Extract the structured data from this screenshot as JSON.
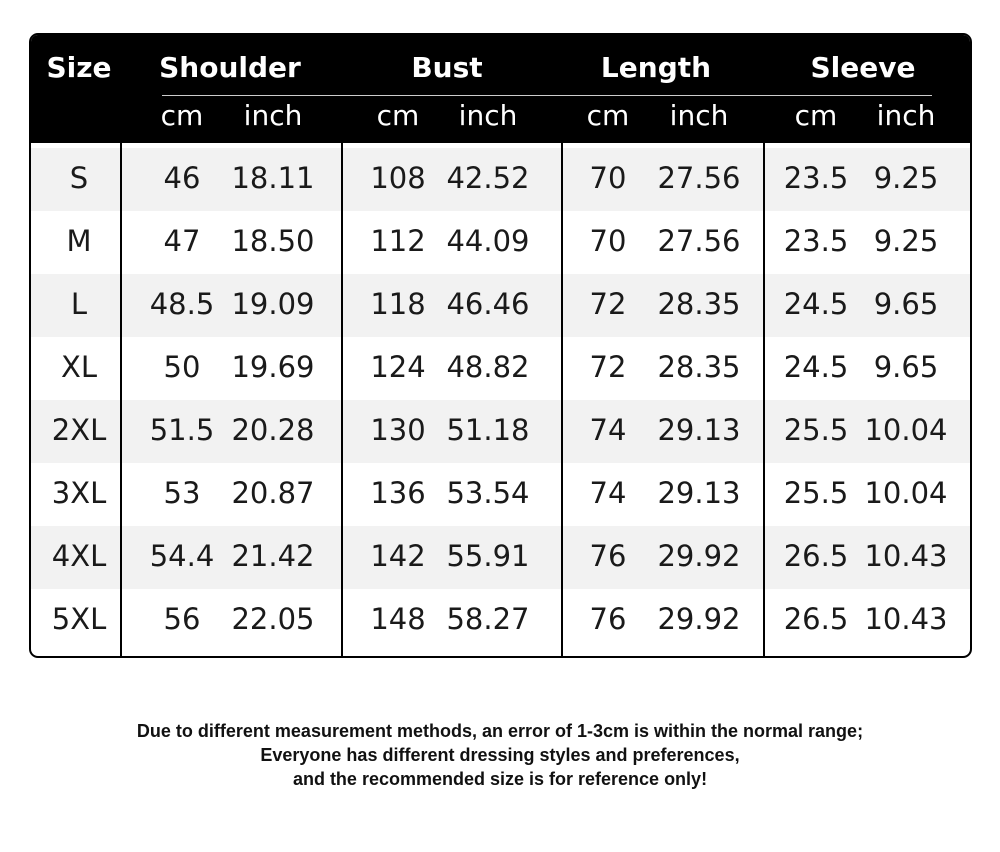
{
  "header": {
    "size_label": "Size",
    "groups": [
      "Shoulder",
      "Bust",
      "Length",
      "Sleeve"
    ],
    "units": [
      "cm",
      "inch"
    ]
  },
  "rows": [
    {
      "size": "S",
      "values": [
        "46",
        "18.11",
        "108",
        "42.52",
        "70",
        "27.56",
        "23.5",
        "9.25"
      ]
    },
    {
      "size": "M",
      "values": [
        "47",
        "18.50",
        "112",
        "44.09",
        "70",
        "27.56",
        "23.5",
        "9.25"
      ]
    },
    {
      "size": "L",
      "values": [
        "48.5",
        "19.09",
        "118",
        "46.46",
        "72",
        "28.35",
        "24.5",
        "9.65"
      ]
    },
    {
      "size": "XL",
      "values": [
        "50",
        "19.69",
        "124",
        "48.82",
        "72",
        "28.35",
        "24.5",
        "9.65"
      ]
    },
    {
      "size": "2XL",
      "values": [
        "51.5",
        "20.28",
        "130",
        "51.18",
        "74",
        "29.13",
        "25.5",
        "10.04"
      ]
    },
    {
      "size": "3XL",
      "values": [
        "53",
        "20.87",
        "136",
        "53.54",
        "74",
        "29.13",
        "25.5",
        "10.04"
      ]
    },
    {
      "size": "4XL",
      "values": [
        "54.4",
        "21.42",
        "142",
        "55.91",
        "76",
        "29.92",
        "26.5",
        "10.43"
      ]
    },
    {
      "size": "5XL",
      "values": [
        "56",
        "22.05",
        "148",
        "58.27",
        "76",
        "29.92",
        "26.5",
        "10.43"
      ]
    }
  ],
  "note": [
    "Due to different measurement methods, an error of 1-3cm is within the normal range;",
    "Everyone has different dressing styles and preferences,",
    "and the recommended size is for reference only!"
  ]
}
